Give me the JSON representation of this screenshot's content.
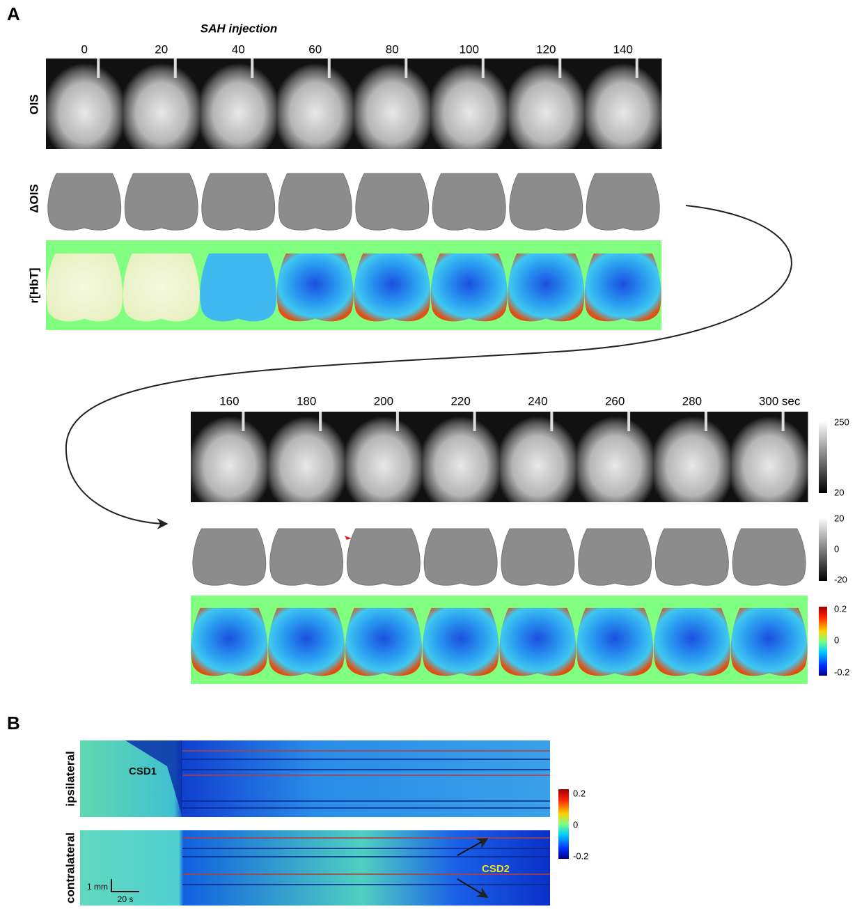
{
  "panel_a": {
    "label": "A",
    "annotation": "SAH injection",
    "row_labels": [
      "OIS",
      "ΔOIS",
      "r[HbT]"
    ],
    "times_top": [
      "0",
      "20",
      "40",
      "60",
      "80",
      "100",
      "120",
      "140"
    ],
    "times_bottom": [
      "160",
      "180",
      "200",
      "220",
      "240",
      "260",
      "280",
      "300 sec"
    ],
    "colorbars": [
      {
        "ticks": [
          "250",
          "20"
        ]
      },
      {
        "ticks": [
          "20",
          "0",
          "-20"
        ]
      },
      {
        "ticks": [
          "0.2",
          "0",
          "-0.2"
        ]
      }
    ]
  },
  "panel_b": {
    "label": "B",
    "row_labels": [
      "ipsilateral",
      "contralateral"
    ],
    "annotations": [
      "CSD1",
      "CSD2"
    ],
    "scale_bar": [
      "1 mm",
      "20 s"
    ],
    "colorbar": {
      "ticks": [
        "0.2",
        "0",
        "-0.2"
      ]
    }
  }
}
